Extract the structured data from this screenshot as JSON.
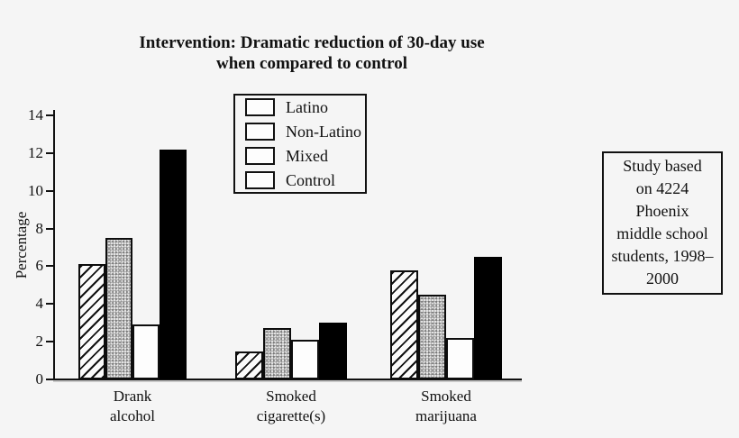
{
  "title": {
    "line1": "Intervention: Dramatic reduction of 30-day use",
    "line2": "when compared to control"
  },
  "y_axis": {
    "label": "Percentage",
    "tick_labels": [
      "0",
      "2",
      "4",
      "6",
      "8",
      "10",
      "12",
      "14"
    ]
  },
  "legend": {
    "items": [
      {
        "label": "Latino",
        "swatch": "diagonal-hatch"
      },
      {
        "label": "Non-Latino",
        "swatch": "stipple"
      },
      {
        "label": "Mixed",
        "swatch": "white"
      },
      {
        "label": "Control",
        "swatch": "solid-black"
      }
    ]
  },
  "annotation_box": {
    "text": "Study based on 4224 Phoenix middle school students, 1998–2000",
    "lines": [
      "Study based",
      "on 4224",
      "Phoenix",
      "middle school",
      "students, 1998–",
      "2000"
    ]
  },
  "chart_data": {
    "type": "bar",
    "title": "Intervention: Dramatic reduction of 30-day use when compared to control",
    "xlabel": "",
    "ylabel": "Percentage",
    "ylim": [
      0,
      14
    ],
    "ytick_step": 2,
    "grid": false,
    "legend_position": "upper-center-inside",
    "categories": [
      "Drank alcohol",
      "Smoked cigarette(s)",
      "Smoked marijuana"
    ],
    "series": [
      {
        "name": "Latino",
        "fill": "diagonal-hatch",
        "values": [
          6.1,
          1.5,
          5.8
        ]
      },
      {
        "name": "Non-Latino",
        "fill": "stipple",
        "values": [
          7.5,
          2.7,
          4.5
        ]
      },
      {
        "name": "Mixed",
        "fill": "white",
        "values": [
          2.9,
          2.1,
          2.2
        ]
      },
      {
        "name": "Control",
        "fill": "solid-black",
        "values": [
          12.2,
          3.0,
          6.5
        ]
      }
    ],
    "annotation": "Study based on 4224 Phoenix middle school students, 1998–2000"
  },
  "colors": {
    "background": "#f5f5f5",
    "ink": "#111111",
    "control_bar": "#000000",
    "stipple_base": "#e2e2e2"
  }
}
